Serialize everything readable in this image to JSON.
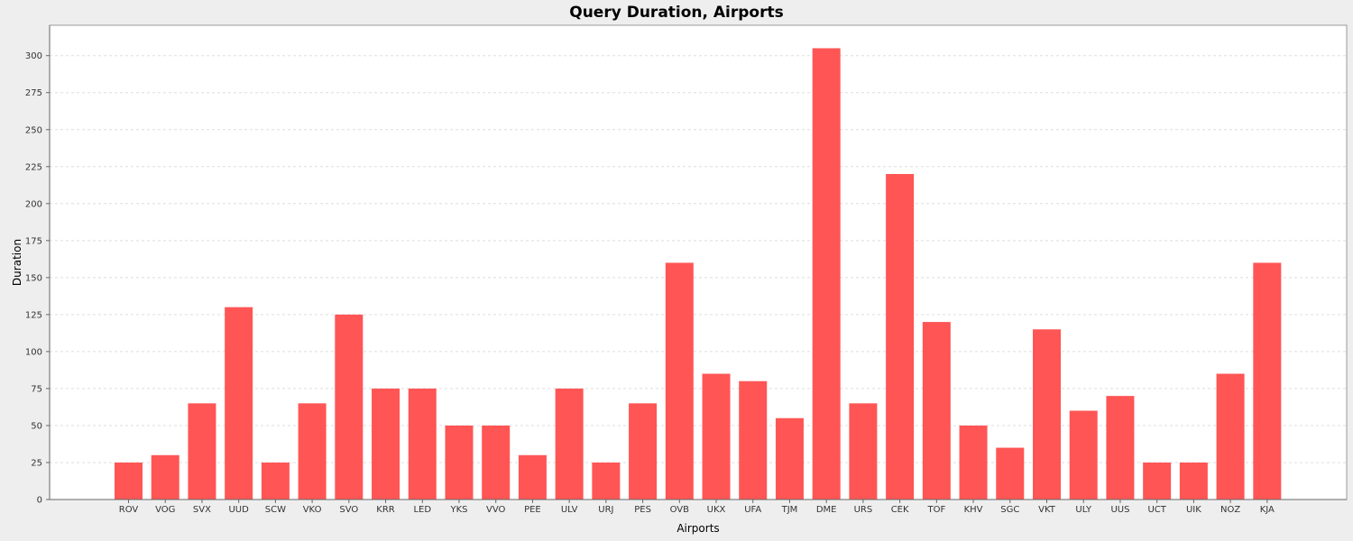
{
  "chart_data": {
    "type": "bar",
    "title": "Query Duration, Airports",
    "xlabel": "Airports",
    "ylabel": "Duration",
    "ylim": [
      0,
      320
    ],
    "yticks": [
      0,
      25,
      50,
      75,
      100,
      125,
      150,
      175,
      200,
      225,
      250,
      275,
      300
    ],
    "grid": true,
    "legend": "none",
    "bar_color": "#ff5555",
    "categories": [
      "ROV",
      "VOG",
      "SVX",
      "UUD",
      "SCW",
      "VKO",
      "SVO",
      "KRR",
      "LED",
      "YKS",
      "VVO",
      "PEE",
      "ULV",
      "URJ",
      "PES",
      "OVB",
      "UKX",
      "UFA",
      "TJM",
      "DME",
      "URS",
      "CEK",
      "TOF",
      "KHV",
      "SGC",
      "VKT",
      "ULY",
      "UUS",
      "UCT",
      "UIK",
      "NOZ",
      "KJA"
    ],
    "values": [
      25,
      30,
      65,
      130,
      25,
      65,
      125,
      75,
      75,
      50,
      50,
      30,
      75,
      25,
      65,
      160,
      85,
      80,
      55,
      305,
      65,
      220,
      120,
      50,
      35,
      115,
      60,
      70,
      25,
      25,
      85,
      160
    ]
  }
}
